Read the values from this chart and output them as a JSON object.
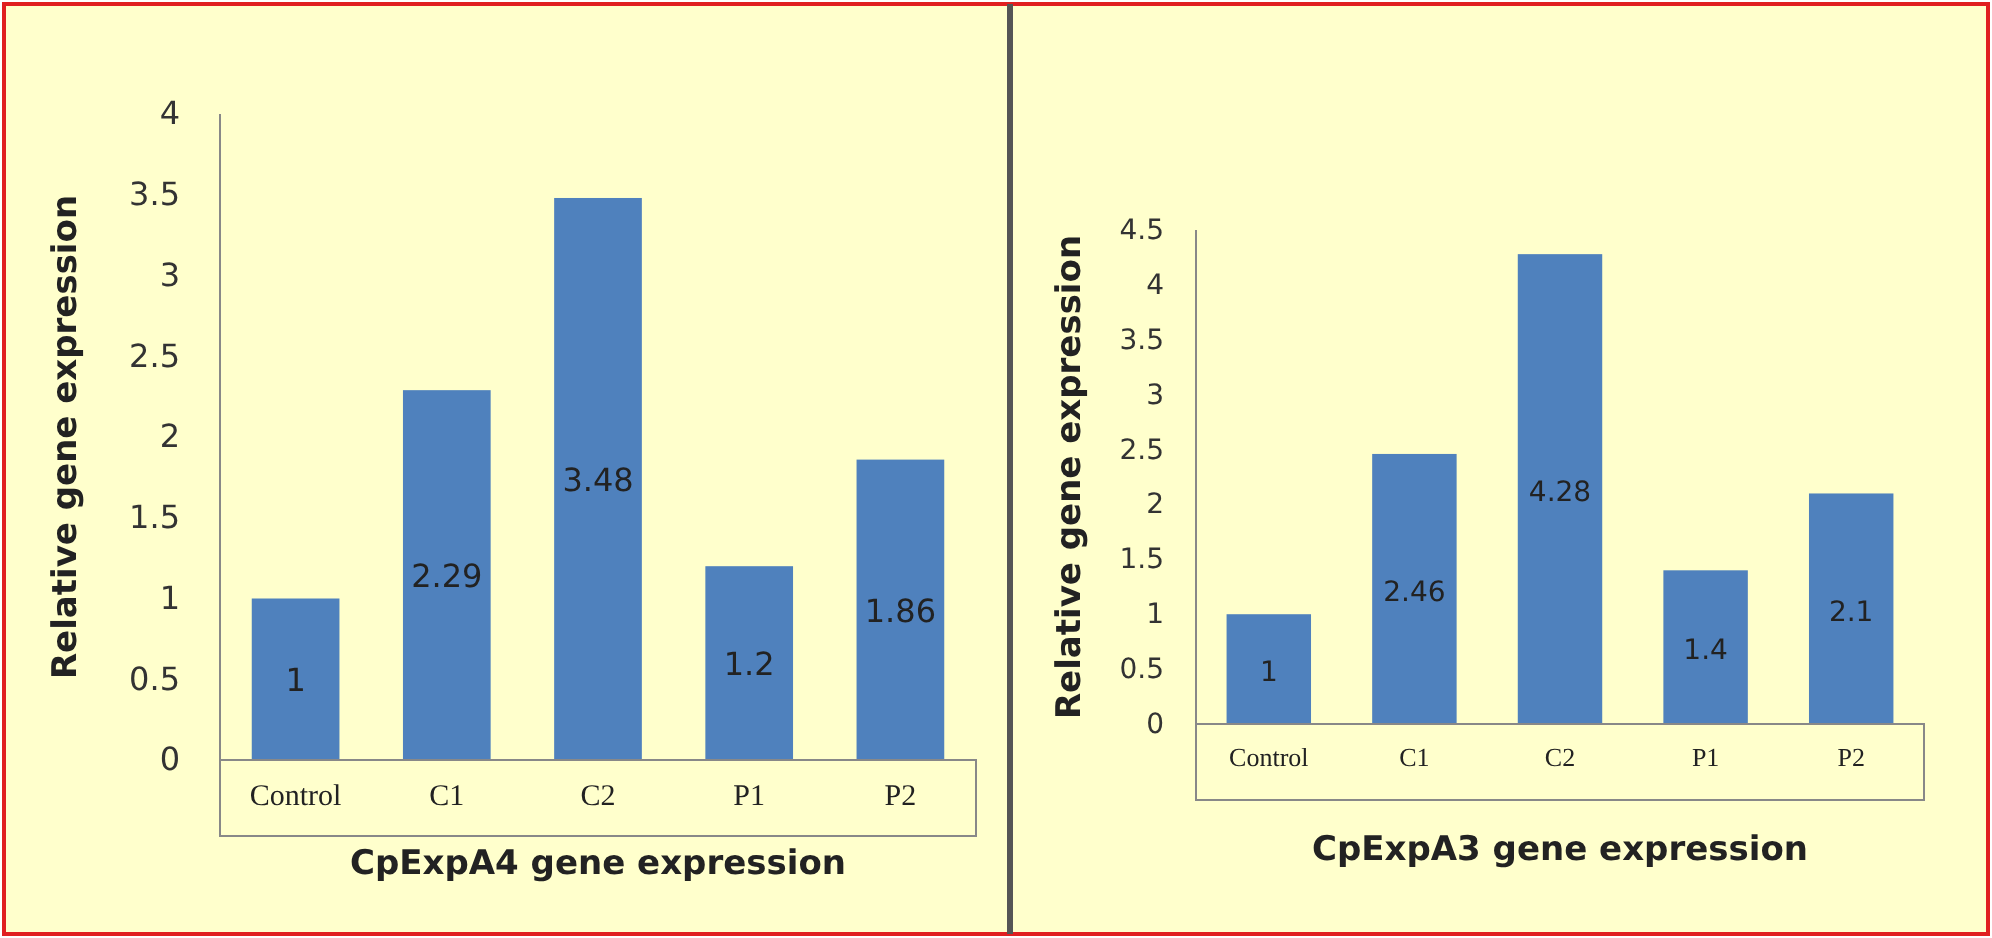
{
  "chart_data": [
    {
      "type": "bar",
      "xlabel": "CpExpA4 gene expression",
      "ylabel": "Relative gene expression",
      "categories": [
        "Control",
        "C1",
        "C2",
        "P1",
        "P2"
      ],
      "values": [
        1,
        2.29,
        3.48,
        1.2,
        1.86
      ],
      "color": "#4f81bd",
      "ylim": [
        0,
        4
      ],
      "yticks": [
        0,
        0.5,
        1,
        1.5,
        2,
        2.5,
        3,
        3.5,
        4
      ],
      "data_labels": true
    },
    {
      "type": "bar",
      "xlabel": "CpExpA3 gene expression",
      "ylabel": "Relative gene expression",
      "categories": [
        "Control",
        "C1",
        "C2",
        "P1",
        "P2"
      ],
      "values": [
        1,
        2.46,
        4.28,
        1.4,
        2.1
      ],
      "color": "#4f81bd",
      "ylim": [
        0,
        4.5
      ],
      "yticks": [
        0,
        0.5,
        1,
        1.5,
        2,
        2.5,
        3,
        3.5,
        4,
        4.5
      ],
      "data_labels": true
    }
  ]
}
